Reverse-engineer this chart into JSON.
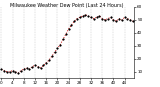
{
  "title": "Milwaukee Weather Dew Point (Last 24 Hours)",
  "background_color": "#ffffff",
  "plot_bg_color": "#ffffff",
  "line_color": "#cc0000",
  "dot_color": "#000000",
  "grid_color": "#aaaaaa",
  "ylim": [
    5,
    60
  ],
  "yticks": [
    10,
    20,
    30,
    40,
    50,
    60
  ],
  "dew_points": [
    12,
    11,
    10,
    10,
    11,
    10,
    9,
    11,
    12,
    13,
    12,
    14,
    15,
    14,
    13,
    15,
    17,
    19,
    22,
    25,
    28,
    31,
    35,
    39,
    43,
    46,
    49,
    51,
    52,
    53,
    54,
    53,
    52,
    51,
    52,
    53,
    51,
    50,
    51,
    52,
    50,
    49,
    51,
    50,
    52,
    51,
    50,
    49
  ],
  "grid_interval": 4,
  "title_fontsize": 3.5,
  "tick_fontsize": 3.0,
  "line_width": 0.7,
  "marker_size": 1.2
}
